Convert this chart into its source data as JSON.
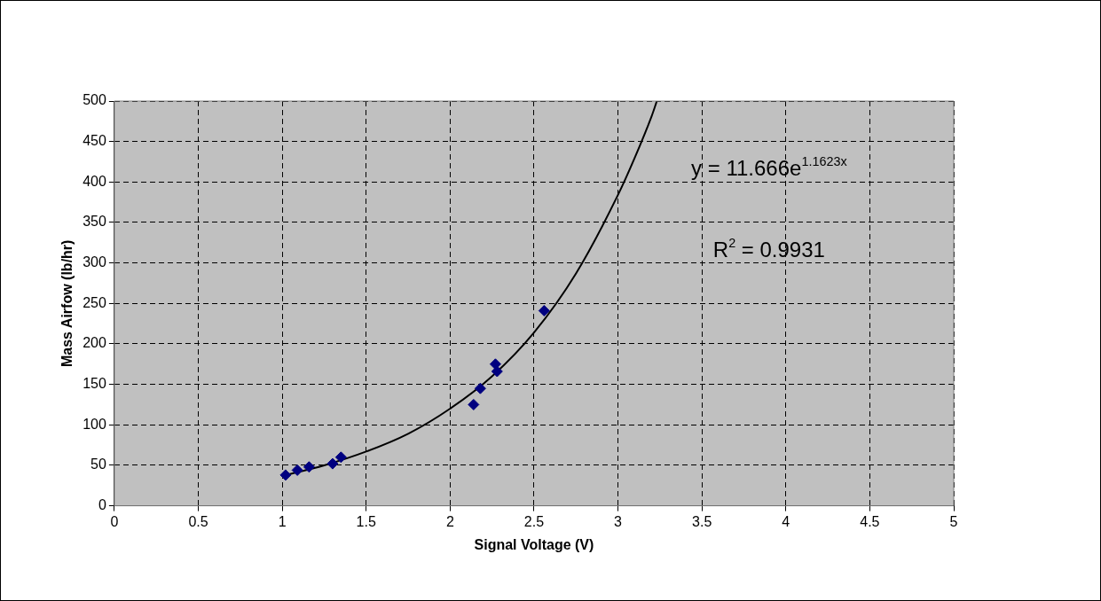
{
  "chart_data": {
    "type": "scatter",
    "xlabel": "Signal Voltage (V)",
    "ylabel": "Mass Airfow (lb/hr)",
    "series": [
      {
        "marker": "diamond",
        "color": "#000080",
        "x": [
          1.02,
          1.09,
          1.16,
          1.3,
          1.35,
          2.14,
          2.18,
          2.27,
          2.28,
          2.56
        ],
        "values": [
          38,
          44,
          48,
          52,
          60,
          125,
          145,
          175,
          166,
          241
        ]
      },
      {
        "type": "line",
        "color": "#000000",
        "x": [
          1.0,
          1.25,
          1.5,
          1.75,
          2.0,
          2.25,
          2.5,
          2.75,
          3.0,
          3.1,
          3.2,
          3.23
        ],
        "values": [
          37,
          50,
          67,
          89,
          120,
          160,
          214,
          287,
          384,
          430,
          481,
          499
        ]
      }
    ],
    "annotations": [
      "y = 11.666e$^{1.1623x}$",
      "R$^{2}$ = 0.9931"
    ],
    "xlim": [
      0,
      5
    ],
    "xticks": [
      0,
      0.5,
      1,
      1.5,
      2,
      2.5,
      3,
      3.5,
      4,
      4.5,
      5
    ],
    "ylim": [
      0,
      500
    ],
    "yticks": [
      0,
      50,
      100,
      150,
      200,
      250,
      300,
      350,
      400,
      450,
      500
    ],
    "grid": true,
    "legend": false
  }
}
